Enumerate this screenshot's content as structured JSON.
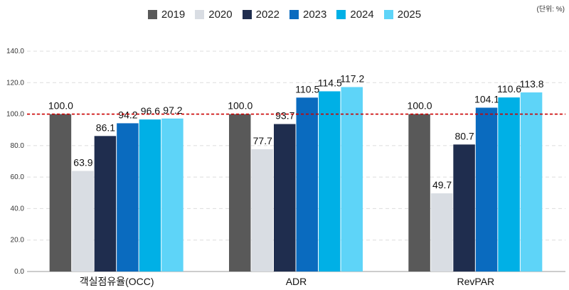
{
  "unit_label": "(단위: %)",
  "chart_data": {
    "type": "bar",
    "title": "",
    "xlabel": "",
    "ylabel": "",
    "categories": [
      "객실점유율(OCC)",
      "ADR",
      "RevPAR"
    ],
    "ylim": [
      0,
      140
    ],
    "yticks": [
      0,
      20,
      40,
      60,
      80,
      100,
      120,
      140
    ],
    "ytick_labels": [
      "0.0",
      "20.0",
      "40.0",
      "60.0",
      "80.0",
      "100.0",
      "120.0",
      "140.0"
    ],
    "reference_line": 100,
    "reference_color": "#cc0000",
    "legend_position": "top",
    "series": [
      {
        "name": "2019",
        "color": "#595959",
        "values": [
          100.0,
          100.0,
          100.0
        ],
        "labels": [
          "100.0",
          "100.0",
          "100.0"
        ]
      },
      {
        "name": "2020",
        "color": "#d9dde3",
        "values": [
          63.9,
          77.7,
          49.7
        ],
        "labels": [
          "63.9",
          "77.7",
          "49.7"
        ]
      },
      {
        "name": "2022",
        "color": "#1f2d4e",
        "values": [
          86.1,
          93.7,
          80.7
        ],
        "labels": [
          "86.1",
          "93.7",
          "80.7"
        ]
      },
      {
        "name": "2023",
        "color": "#0a6bbf",
        "values": [
          94.2,
          110.5,
          104.1
        ],
        "labels": [
          "94.2",
          "110.5",
          "104.1"
        ]
      },
      {
        "name": "2024",
        "color": "#00b0e6",
        "values": [
          96.6,
          114.5,
          110.6
        ],
        "labels": [
          "96.6",
          "114.5",
          "110.6"
        ]
      },
      {
        "name": "2025",
        "color": "#5ed4f8",
        "values": [
          97.2,
          117.2,
          113.8
        ],
        "labels": [
          "97.2",
          "117.2",
          "113.8"
        ]
      }
    ],
    "series_order_note": "",
    "grid": true
  }
}
